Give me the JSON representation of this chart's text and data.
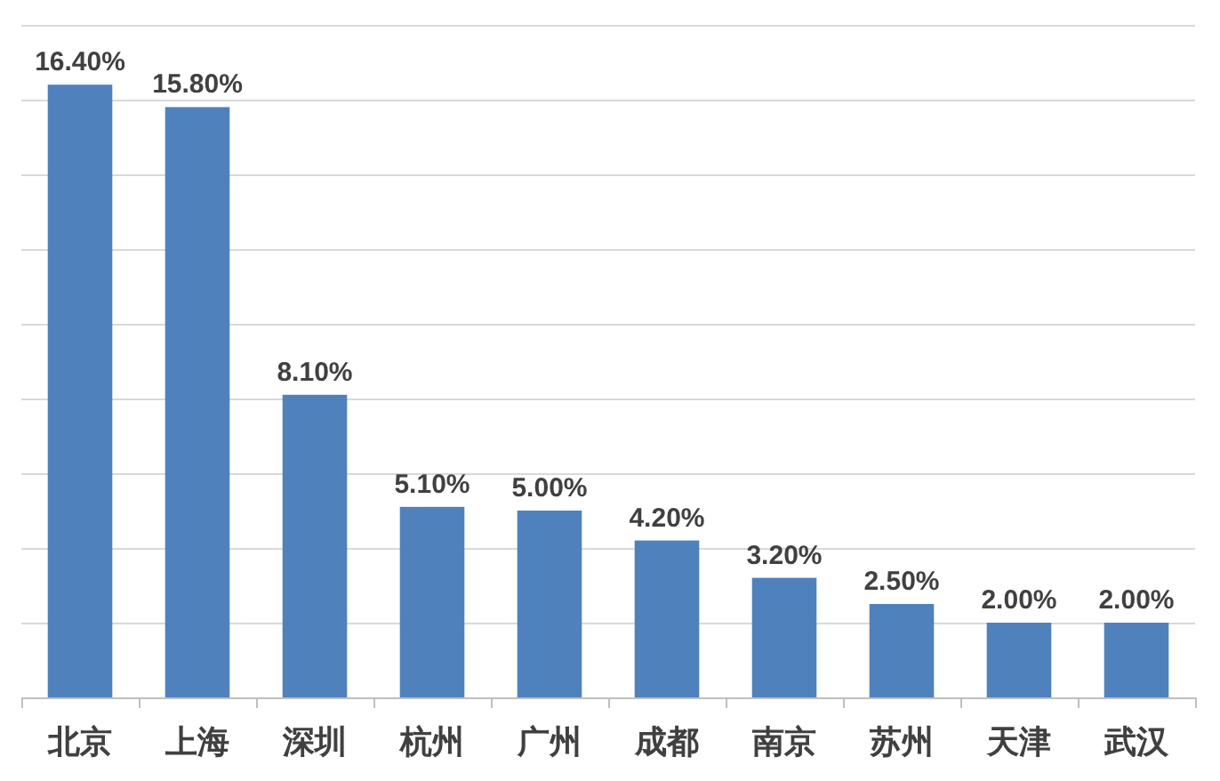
{
  "chart_data": {
    "type": "bar",
    "categories": [
      "北京",
      "上海",
      "深圳",
      "杭州",
      "广州",
      "成都",
      "南京",
      "苏州",
      "天津",
      "武汉"
    ],
    "values": [
      16.4,
      15.8,
      8.1,
      5.1,
      5.0,
      4.2,
      3.2,
      2.5,
      2.0,
      2.0
    ],
    "value_labels": [
      "16.40%",
      "15.80%",
      "8.10%",
      "5.10%",
      "5.00%",
      "4.20%",
      "3.20%",
      "2.50%",
      "2.00%",
      "2.00%"
    ],
    "color": "#4f81bd",
    "ylim": [
      0,
      18
    ],
    "yticks": [
      {
        "value": 0,
        "label": null
      },
      {
        "value": 2,
        "label": null
      },
      {
        "value": 4,
        "label": null
      },
      {
        "value": 6,
        "label": null
      },
      {
        "value": 8,
        "label": null
      },
      {
        "value": 10,
        "label": null
      },
      {
        "value": 12,
        "label": null
      },
      {
        "value": 14,
        "label": null
      },
      {
        "value": 16,
        "label": null
      },
      {
        "value": 18,
        "label": null
      }
    ],
    "grid": "y",
    "tick_labels": "x"
  }
}
